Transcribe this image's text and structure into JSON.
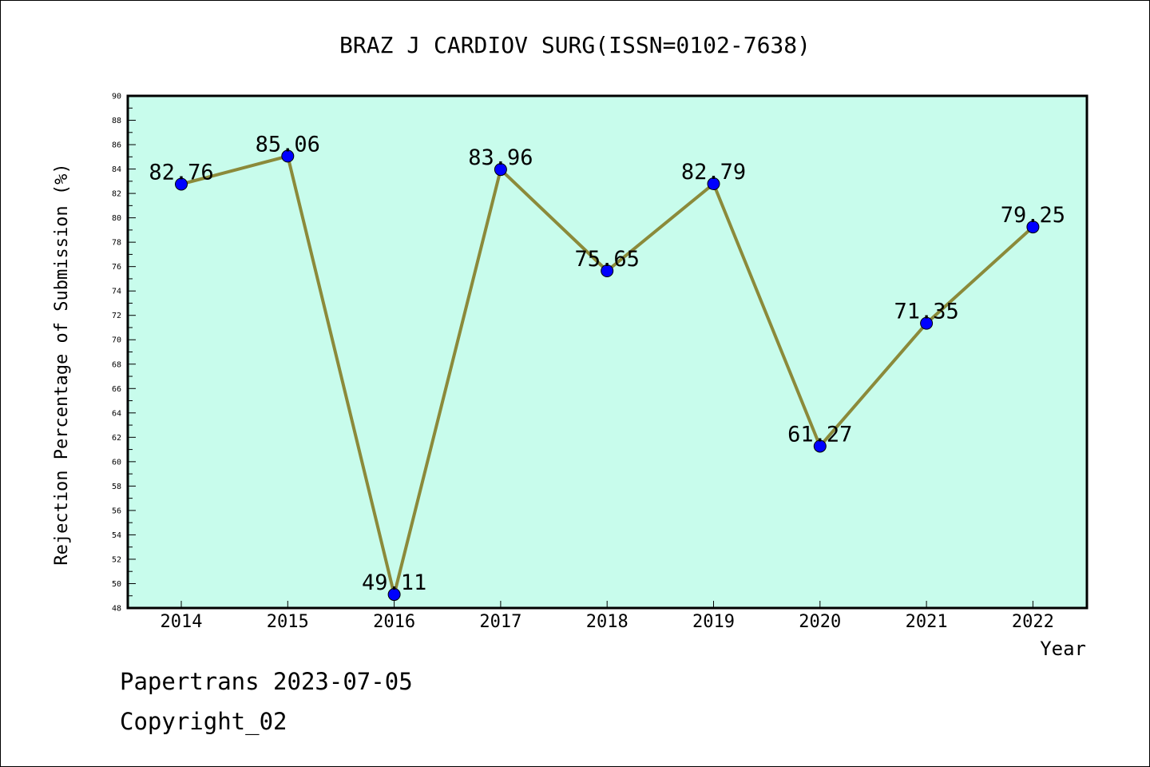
{
  "chart_data": {
    "type": "line",
    "title": "BRAZ J CARDIOV SURG(ISSN=0102-7638)",
    "xlabel": "Year",
    "ylabel": "Rejection Percentage of Submission (%)",
    "categories": [
      "2014",
      "2015",
      "2016",
      "2017",
      "2018",
      "2019",
      "2020",
      "2021",
      "2022"
    ],
    "series": [
      {
        "values": [
          82.76,
          85.06,
          49.11,
          83.96,
          75.65,
          82.79,
          61.27,
          71.35,
          79.25
        ]
      }
    ],
    "data_labels": [
      "82.76",
      "85.06",
      "49.11",
      "83.96",
      "75.65",
      "82.79",
      "61.27",
      "71.35",
      "79.25"
    ],
    "ylim": [
      48,
      90
    ],
    "y_ticks": [
      "48",
      "50",
      "52",
      "54",
      "56",
      "58",
      "60",
      "62",
      "64",
      "66",
      "68",
      "70",
      "72",
      "74",
      "76",
      "78",
      "80",
      "82",
      "84",
      "86",
      "88",
      "90"
    ],
    "grid": false,
    "colors": {
      "plot_background": "#c8fcec",
      "line": "#8b8a3a",
      "marker": "#0000ff"
    }
  },
  "footer": {
    "line1": "Papertrans 2023-07-05",
    "line2": "Copyright_02"
  }
}
